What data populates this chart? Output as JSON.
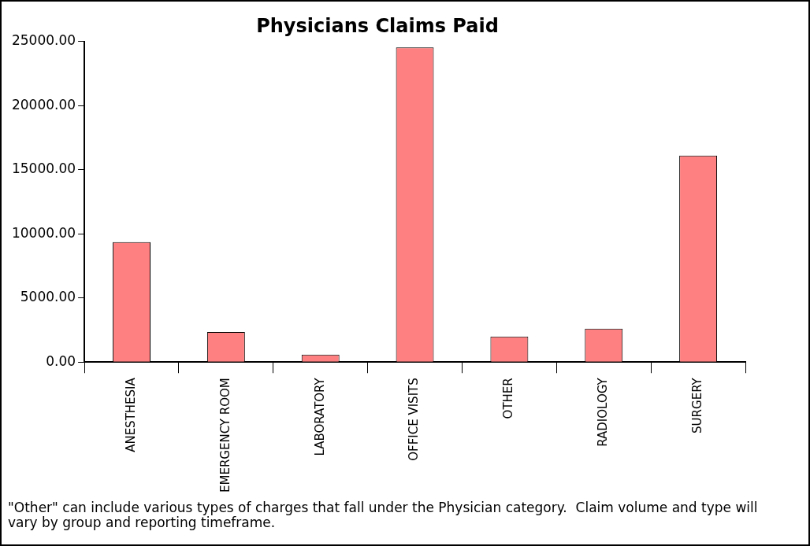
{
  "chart_data": {
    "type": "bar",
    "title": "Physicians Claims Paid",
    "categories": [
      "ANESTHESIA",
      "EMERGENCY ROOM",
      "LABORATORY",
      "OFFICE VISITS",
      "OTHER",
      "RADIOLOGY",
      "SURGERY"
    ],
    "values": [
      9350,
      2350,
      580,
      24550,
      2000,
      2600,
      16100
    ],
    "color": "#ff8080",
    "ylim": [
      0,
      25000
    ],
    "yticks": [
      {
        "value": 0,
        "label": "0.00"
      },
      {
        "value": 5000,
        "label": "5000.00"
      },
      {
        "value": 10000,
        "label": "10000.00"
      },
      {
        "value": 15000,
        "label": "15000.00"
      },
      {
        "value": 20000,
        "label": "20000.00"
      },
      {
        "value": 25000,
        "label": "25000.00"
      }
    ],
    "grid": false,
    "annotations": [
      "\"Other\" can include various types of charges that fall under the Physician category.  Claim volume and type will vary by group and reporting timeframe."
    ]
  }
}
